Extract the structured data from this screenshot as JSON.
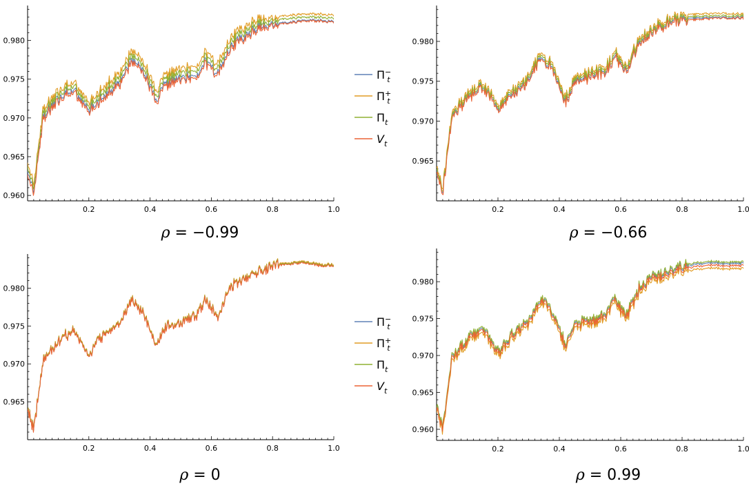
{
  "legend": {
    "entries": [
      {
        "base": "Π",
        "sub": "t",
        "sup": "−",
        "color": "#5E81B5"
      },
      {
        "base": "Π",
        "sub": "t",
        "sup": "+",
        "color": "#E19C24"
      },
      {
        "base": "Π",
        "sub": "t",
        "sup": "",
        "color": "#8FB032"
      },
      {
        "base": "V",
        "sub": "t",
        "sup": "",
        "color": "#EB6235"
      }
    ]
  },
  "chart_data": [
    {
      "type": "line",
      "caption": {
        "symbol": "ρ",
        "value": "−0.99"
      },
      "xlim": [
        0,
        1.0
      ],
      "ylim": [
        0.9593,
        0.9845
      ],
      "xticks": [
        "0.2",
        "0.4",
        "0.6",
        "0.8",
        "1.0"
      ],
      "yticks": [
        "0.960",
        "0.965",
        "0.970",
        "0.975",
        "0.980"
      ],
      "legend_placement": "right",
      "x": [
        0,
        0.02,
        0.05,
        0.1,
        0.15,
        0.2,
        0.25,
        0.3,
        0.34,
        0.38,
        0.42,
        0.45,
        0.5,
        0.55,
        0.58,
        0.62,
        0.66,
        0.7,
        0.75,
        0.8,
        0.85,
        0.9,
        0.95,
        1.0
      ],
      "series": [
        {
          "name": "Π_t^−",
          "values": [
            0.9635,
            0.9605,
            0.97,
            0.9725,
            0.9735,
            0.971,
            0.973,
            0.9745,
            0.9775,
            0.976,
            0.972,
            0.9745,
            0.975,
            0.9755,
            0.9775,
            0.9755,
            0.979,
            0.9805,
            0.9815,
            0.9822,
            0.9823,
            0.9826,
            0.9826,
            0.9825
          ]
        },
        {
          "name": "Π_t^+",
          "values": [
            0.9645,
            0.9615,
            0.971,
            0.9735,
            0.9745,
            0.972,
            0.9742,
            0.9757,
            0.9787,
            0.9772,
            0.9732,
            0.9757,
            0.9762,
            0.9767,
            0.9787,
            0.9767,
            0.9802,
            0.9817,
            0.9826,
            0.983,
            0.9832,
            0.9834,
            0.9834,
            0.9833
          ]
        },
        {
          "name": "Π_t",
          "values": [
            0.964,
            0.961,
            0.9705,
            0.973,
            0.974,
            0.9715,
            0.9736,
            0.9751,
            0.9781,
            0.9766,
            0.9726,
            0.9751,
            0.9756,
            0.9761,
            0.9781,
            0.9761,
            0.9796,
            0.9811,
            0.982,
            0.9826,
            0.9828,
            0.983,
            0.983,
            0.9829
          ]
        },
        {
          "name": "V_t",
          "values": [
            0.963,
            0.9602,
            0.9697,
            0.9722,
            0.9732,
            0.9707,
            0.9727,
            0.9742,
            0.9772,
            0.9757,
            0.9717,
            0.9742,
            0.9747,
            0.9752,
            0.9772,
            0.9752,
            0.9787,
            0.9802,
            0.9812,
            0.982,
            0.9822,
            0.9825,
            0.9825,
            0.9824
          ]
        }
      ]
    },
    {
      "type": "line",
      "caption": {
        "symbol": "ρ",
        "value": "−0.66"
      },
      "xlim": [
        0,
        1.0
      ],
      "ylim": [
        0.96,
        0.9845
      ],
      "xticks": [
        "0.2",
        "0.4",
        "0.6",
        "0.8",
        "1.0"
      ],
      "yticks": [
        "0.965",
        "0.970",
        "0.975",
        "0.980"
      ],
      "x": [
        0,
        0.02,
        0.05,
        0.1,
        0.15,
        0.2,
        0.25,
        0.3,
        0.34,
        0.38,
        0.42,
        0.45,
        0.5,
        0.55,
        0.58,
        0.62,
        0.66,
        0.7,
        0.75,
        0.8,
        0.85,
        0.9,
        0.95,
        1.0
      ],
      "series": [
        {
          "name": "Π_t^−",
          "values": [
            0.964,
            0.9612,
            0.9705,
            0.973,
            0.9745,
            0.9715,
            0.9735,
            0.9752,
            0.9783,
            0.9765,
            0.9725,
            0.975,
            0.9757,
            0.9763,
            0.9782,
            0.9762,
            0.98,
            0.9812,
            0.9822,
            0.9828,
            0.9829,
            0.983,
            0.983,
            0.983
          ]
        },
        {
          "name": "Π_t^+",
          "values": [
            0.9645,
            0.9617,
            0.971,
            0.9735,
            0.975,
            0.972,
            0.9741,
            0.9758,
            0.9789,
            0.9771,
            0.9731,
            0.9756,
            0.9763,
            0.9769,
            0.9788,
            0.9768,
            0.9806,
            0.9817,
            0.9827,
            0.9833,
            0.9834,
            0.9835,
            0.9835,
            0.9834
          ]
        },
        {
          "name": "Π_t",
          "values": [
            0.9642,
            0.9614,
            0.9707,
            0.9732,
            0.9747,
            0.9717,
            0.9738,
            0.9755,
            0.9786,
            0.9768,
            0.9728,
            0.9753,
            0.976,
            0.9766,
            0.9785,
            0.9765,
            0.9803,
            0.9814,
            0.9824,
            0.983,
            0.9831,
            0.9832,
            0.9832,
            0.9832
          ]
        },
        {
          "name": "V_t",
          "values": [
            0.9638,
            0.961,
            0.9703,
            0.9728,
            0.9743,
            0.9713,
            0.9733,
            0.975,
            0.9781,
            0.9763,
            0.9723,
            0.9748,
            0.9755,
            0.9761,
            0.978,
            0.976,
            0.9798,
            0.981,
            0.982,
            0.9826,
            0.9827,
            0.9829,
            0.9829,
            0.9829
          ]
        }
      ]
    },
    {
      "type": "line",
      "caption": {
        "symbol": "ρ",
        "value": "0"
      },
      "xlim": [
        0,
        1.0
      ],
      "ylim": [
        0.96,
        0.9845
      ],
      "xticks": [
        "0.2",
        "0.4",
        "0.6",
        "0.8",
        "1.0"
      ],
      "yticks": [
        "0.965",
        "0.970",
        "0.975",
        "0.980"
      ],
      "legend_placement": "right",
      "x": [
        0,
        0.02,
        0.05,
        0.1,
        0.15,
        0.2,
        0.25,
        0.3,
        0.34,
        0.38,
        0.42,
        0.45,
        0.5,
        0.55,
        0.58,
        0.62,
        0.66,
        0.7,
        0.75,
        0.8,
        0.85,
        0.9,
        0.95,
        1.0
      ],
      "series": [
        {
          "name": "Π_t^−",
          "values": [
            0.9642,
            0.9612,
            0.9705,
            0.973,
            0.9745,
            0.9712,
            0.974,
            0.9755,
            0.9785,
            0.9765,
            0.9722,
            0.975,
            0.9757,
            0.9763,
            0.9785,
            0.9762,
            0.98,
            0.9812,
            0.9822,
            0.983,
            0.9833,
            0.9834,
            0.9831,
            0.983
          ]
        },
        {
          "name": "Π_t^+",
          "values": [
            0.9643,
            0.9613,
            0.9706,
            0.9731,
            0.9746,
            0.9713,
            0.9741,
            0.9756,
            0.9786,
            0.9766,
            0.9723,
            0.9751,
            0.9758,
            0.9764,
            0.9786,
            0.9763,
            0.9801,
            0.9813,
            0.9823,
            0.9831,
            0.9834,
            0.9835,
            0.9832,
            0.9831
          ]
        },
        {
          "name": "Π_t",
          "values": [
            0.9642,
            0.9612,
            0.9705,
            0.973,
            0.9745,
            0.9712,
            0.974,
            0.9755,
            0.9785,
            0.9765,
            0.9722,
            0.975,
            0.9757,
            0.9763,
            0.9785,
            0.9762,
            0.98,
            0.9812,
            0.9822,
            0.983,
            0.9833,
            0.9834,
            0.9831,
            0.983
          ]
        },
        {
          "name": "V_t",
          "values": [
            0.9641,
            0.9611,
            0.9704,
            0.9729,
            0.9744,
            0.9711,
            0.9739,
            0.9754,
            0.9784,
            0.9764,
            0.9721,
            0.9749,
            0.9756,
            0.9762,
            0.9784,
            0.9761,
            0.9799,
            0.9811,
            0.9821,
            0.9829,
            0.9832,
            0.9833,
            0.983,
            0.9829
          ]
        }
      ]
    },
    {
      "type": "line",
      "caption": {
        "symbol": "ρ",
        "value": "0.99"
      },
      "xlim": [
        0,
        1.0
      ],
      "ylim": [
        0.9585,
        0.9845
      ],
      "xticks": [
        "0.2",
        "0.4",
        "0.6",
        "0.8",
        "1.0"
      ],
      "yticks": [
        "0.960",
        "0.965",
        "0.970",
        "0.975",
        "0.980"
      ],
      "x": [
        0,
        0.02,
        0.05,
        0.1,
        0.15,
        0.2,
        0.25,
        0.3,
        0.34,
        0.38,
        0.42,
        0.45,
        0.5,
        0.55,
        0.58,
        0.62,
        0.66,
        0.7,
        0.75,
        0.8,
        0.85,
        0.9,
        0.95,
        1.0
      ],
      "series": [
        {
          "name": "Π_t^−",
          "values": [
            0.9632,
            0.96,
            0.9698,
            0.9722,
            0.9738,
            0.9705,
            0.973,
            0.9745,
            0.9778,
            0.9757,
            0.9715,
            0.9742,
            0.975,
            0.9755,
            0.9775,
            0.9755,
            0.9792,
            0.9805,
            0.9815,
            0.9821,
            0.9824,
            0.9826,
            0.9824,
            0.9825
          ]
        },
        {
          "name": "Π_t^+",
          "values": [
            0.9628,
            0.9594,
            0.9692,
            0.9716,
            0.9732,
            0.9699,
            0.9724,
            0.9739,
            0.9772,
            0.9751,
            0.9709,
            0.9736,
            0.9744,
            0.9749,
            0.9769,
            0.9749,
            0.9786,
            0.9799,
            0.9808,
            0.9814,
            0.9817,
            0.9819,
            0.9817,
            0.9818
          ]
        },
        {
          "name": "Π_t",
          "values": [
            0.9634,
            0.9602,
            0.97,
            0.9724,
            0.974,
            0.9707,
            0.9732,
            0.9747,
            0.978,
            0.9759,
            0.9717,
            0.9744,
            0.9752,
            0.9757,
            0.9777,
            0.9757,
            0.9794,
            0.9807,
            0.9817,
            0.9823,
            0.9826,
            0.9828,
            0.9826,
            0.9827
          ]
        },
        {
          "name": "V_t",
          "values": [
            0.963,
            0.9598,
            0.9696,
            0.972,
            0.9736,
            0.9703,
            0.9728,
            0.9743,
            0.9776,
            0.9755,
            0.9713,
            0.974,
            0.9748,
            0.9753,
            0.9773,
            0.9753,
            0.979,
            0.9803,
            0.9812,
            0.9818,
            0.9821,
            0.9823,
            0.9821,
            0.9822
          ]
        }
      ]
    }
  ]
}
